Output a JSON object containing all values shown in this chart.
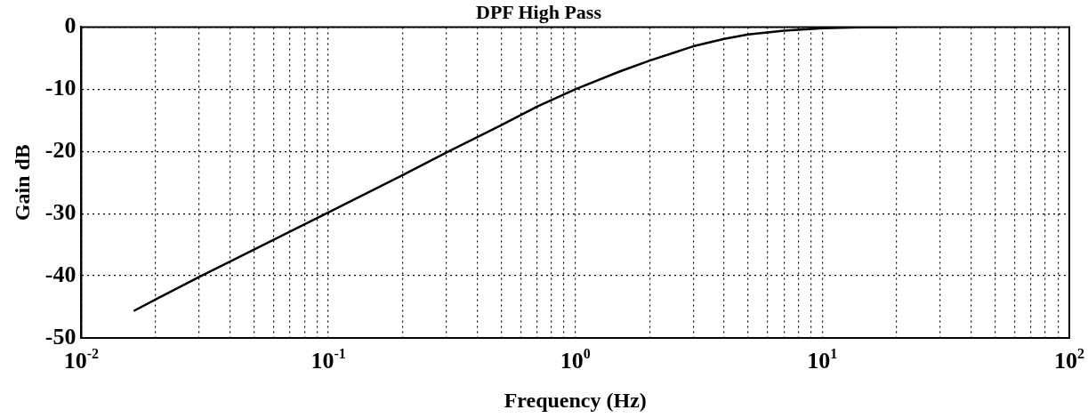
{
  "chart_data": {
    "type": "line",
    "title": "DPF High Pass",
    "xlabel": "Frequency (Hz)",
    "ylabel": "Gain dB",
    "log": "x",
    "grid": true,
    "legend": false,
    "marker": "none",
    "line_style": "solid",
    "x": [
      0.0164,
      0.02,
      0.03,
      0.05,
      0.1,
      0.2,
      0.3,
      0.5,
      0.7,
      1,
      1.5,
      2,
      3,
      4,
      5,
      7,
      10,
      15,
      20
    ],
    "series": [
      {
        "color": "#000000",
        "values": [
          -45.6,
          -43.8,
          -40.2,
          -35.8,
          -29.8,
          -23.8,
          -20.2,
          -15.8,
          -12.8,
          -10,
          -7.2,
          -5.4,
          -3.1,
          -1.9,
          -1.2,
          -0.6,
          -0.2,
          0,
          0
        ]
      }
    ],
    "xlim": [
      0.01,
      100
    ],
    "xticks": [
      {
        "value": 0.01,
        "label": "10$^{-2}$"
      },
      {
        "value": 0.02,
        "label": null
      },
      {
        "value": 0.03,
        "label": null
      },
      {
        "value": 0.04,
        "label": null
      },
      {
        "value": 0.05,
        "label": null
      },
      {
        "value": 0.06,
        "label": null
      },
      {
        "value": 0.07,
        "label": null
      },
      {
        "value": 0.08,
        "label": null
      },
      {
        "value": 0.09,
        "label": null
      },
      {
        "value": 0.1,
        "label": "10$^{-1}$"
      },
      {
        "value": 0.2,
        "label": null
      },
      {
        "value": 0.3,
        "label": null
      },
      {
        "value": 0.4,
        "label": null
      },
      {
        "value": 0.5,
        "label": null
      },
      {
        "value": 0.6,
        "label": null
      },
      {
        "value": 0.7,
        "label": null
      },
      {
        "value": 0.8,
        "label": null
      },
      {
        "value": 0.9,
        "label": null
      },
      {
        "value": 1,
        "label": "10$^{0}$"
      },
      {
        "value": 2,
        "label": null
      },
      {
        "value": 3,
        "label": null
      },
      {
        "value": 4,
        "label": null
      },
      {
        "value": 5,
        "label": null
      },
      {
        "value": 6,
        "label": null
      },
      {
        "value": 7,
        "label": null
      },
      {
        "value": 8,
        "label": null
      },
      {
        "value": 9,
        "label": null
      },
      {
        "value": 10,
        "label": "10$^{1}$"
      },
      {
        "value": 20,
        "label": null
      },
      {
        "value": 30,
        "label": null
      },
      {
        "value": 40,
        "label": null
      },
      {
        "value": 50,
        "label": null
      },
      {
        "value": 60,
        "label": null
      },
      {
        "value": 70,
        "label": null
      },
      {
        "value": 80,
        "label": null
      },
      {
        "value": 90,
        "label": null
      },
      {
        "value": 100,
        "label": "10$^{2}$"
      }
    ],
    "ylim": [
      -50,
      0
    ],
    "yticks": [
      {
        "value": -50,
        "label": "-50"
      },
      {
        "value": -40,
        "label": "-40"
      },
      {
        "value": -30,
        "label": "-30"
      },
      {
        "value": -20,
        "label": "-20"
      },
      {
        "value": -10,
        "label": "-10"
      },
      {
        "value": 0,
        "label": "0"
      }
    ]
  }
}
